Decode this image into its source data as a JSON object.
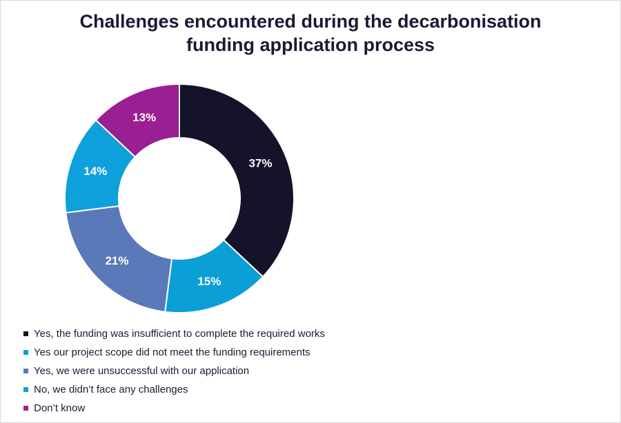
{
  "chart_data": {
    "type": "pie",
    "variant": "donut",
    "title": "Challenges encountered during the decarbonisation funding application process",
    "title_lines": [
      "Challenges encountered during the decarbonisation",
      "funding application process"
    ],
    "legend_position": "bottom-left",
    "slices": [
      {
        "label": "Yes, the funding was insufficient to complete the required works",
        "value": 37,
        "display": "37%",
        "color": "#151329"
      },
      {
        "label": "Yes our project scope did not meet the funding requirements",
        "value": 15,
        "display": "15%",
        "color": "#0a9fd7"
      },
      {
        "label": "Yes, we were unsuccessful with our application",
        "value": 21,
        "display": "21%",
        "color": "#5a79b8"
      },
      {
        "label": "No, we didn’t face any challenges",
        "value": 14,
        "display": "14%",
        "color": "#0ea0da"
      },
      {
        "label": "Don’t know",
        "value": 13,
        "display": "13%",
        "color": "#9a1f92"
      }
    ]
  }
}
